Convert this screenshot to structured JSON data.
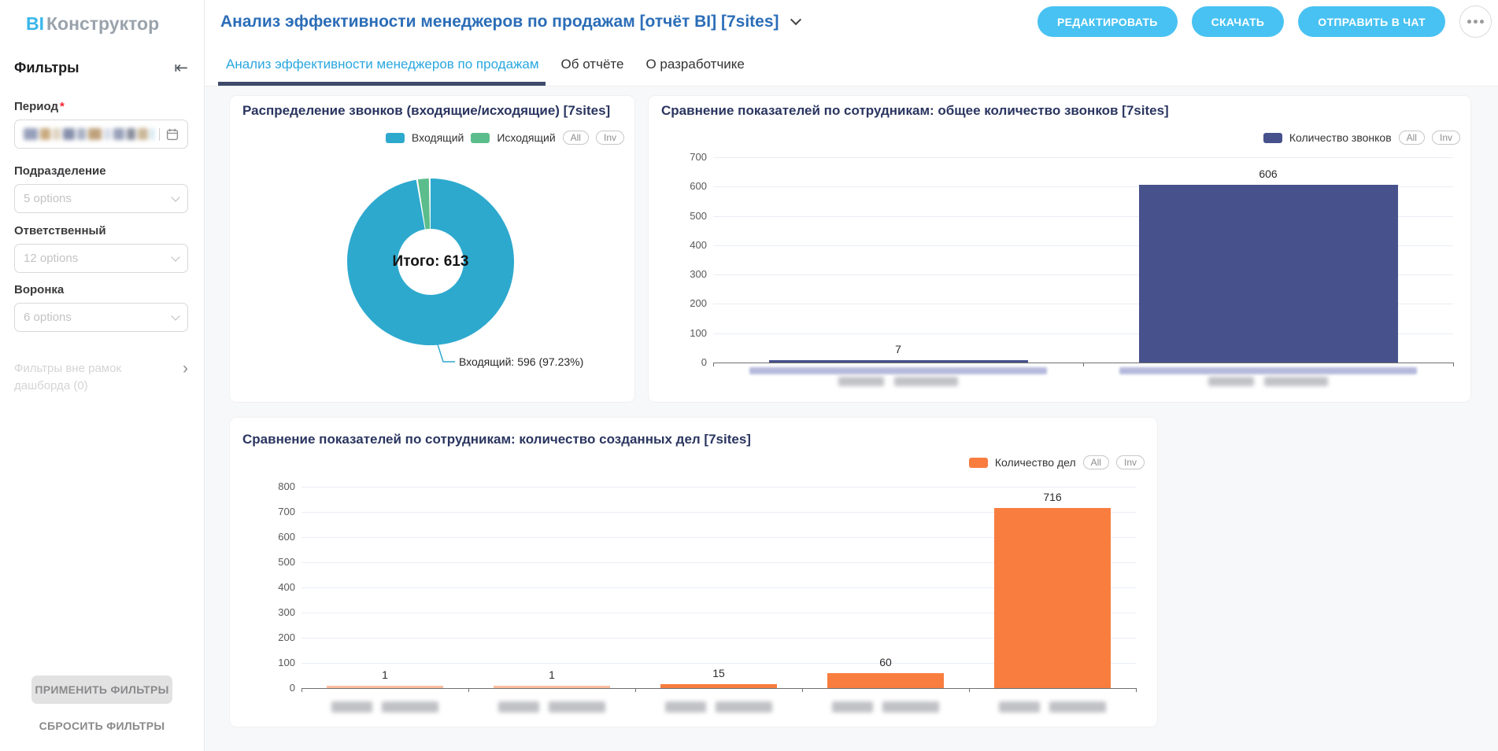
{
  "app": {
    "logo_bi": "BI",
    "logo_name": "Конструктор",
    "report_title": "Анализ эффективности менеджеров по продажам [отчёт BI] [7sites]",
    "actions": {
      "edit": "РЕДАКТИРОВАТЬ",
      "download": "СКАЧАТЬ",
      "send_to_chat": "ОТПРАВИТЬ В ЧАТ"
    }
  },
  "filters": {
    "panel_title": "Фильтры",
    "period_label": "Период",
    "period_required_mark": "*",
    "period_value": "blurred",
    "department_label": "Подразделение",
    "department_placeholder": "5 options",
    "responsible_label": "Ответственный",
    "responsible_placeholder": "12 options",
    "funnel_label": "Воронка",
    "funnel_placeholder": "6 options",
    "outer_filters_label": "Фильтры вне рамок дашборда (0)",
    "apply_label": "ПРИМЕНИТЬ ФИЛЬТРЫ",
    "reset_label": "СБРОСИТЬ ФИЛЬТРЫ"
  },
  "tabs": {
    "tab1": "Анализ эффективности менеджеров по продажам",
    "tab2": "Об отчёте",
    "tab3": "О разработчике"
  },
  "legend_controls": {
    "all": "All",
    "inv": "Inv"
  },
  "chart_data": [
    {
      "type": "pie",
      "donut": true,
      "title": "Распределение звонков (входящие/исходящие) [7sites]",
      "legend": [
        "Входящий",
        "Исходящий"
      ],
      "colors": [
        "#2ea9ce",
        "#5bbd8b"
      ],
      "slices": [
        {
          "name": "Входящий",
          "value": 596,
          "pct": 97.23
        },
        {
          "name": "Исходящий",
          "value": 17,
          "pct": 2.77
        }
      ],
      "total": 613,
      "center_label": "Итого: 613",
      "callout": "Входящий: 596 (97.23%)",
      "legend_position": "top-right"
    },
    {
      "type": "bar",
      "title": "Сравнение показателей по сотрудникам: общее количество звонков [7sites]",
      "series_name": "Количество звонков",
      "color": "#47518c",
      "values": [
        7,
        606
      ],
      "ylim": [
        0,
        700
      ],
      "ytick_step": 100,
      "grid": true,
      "x_labels_blurred": true,
      "legend_position": "top-right"
    },
    {
      "type": "bar",
      "title": "Сравнение показателей по сотрудникам: количество созданных дел [7sites]",
      "series_name": "Количество дел",
      "color": "#f87d3f",
      "values": [
        1,
        1,
        15,
        60,
        716
      ],
      "ylim": [
        0,
        800
      ],
      "ytick_step": 100,
      "grid": true,
      "x_labels_blurred": true,
      "legend_position": "top-right"
    }
  ]
}
